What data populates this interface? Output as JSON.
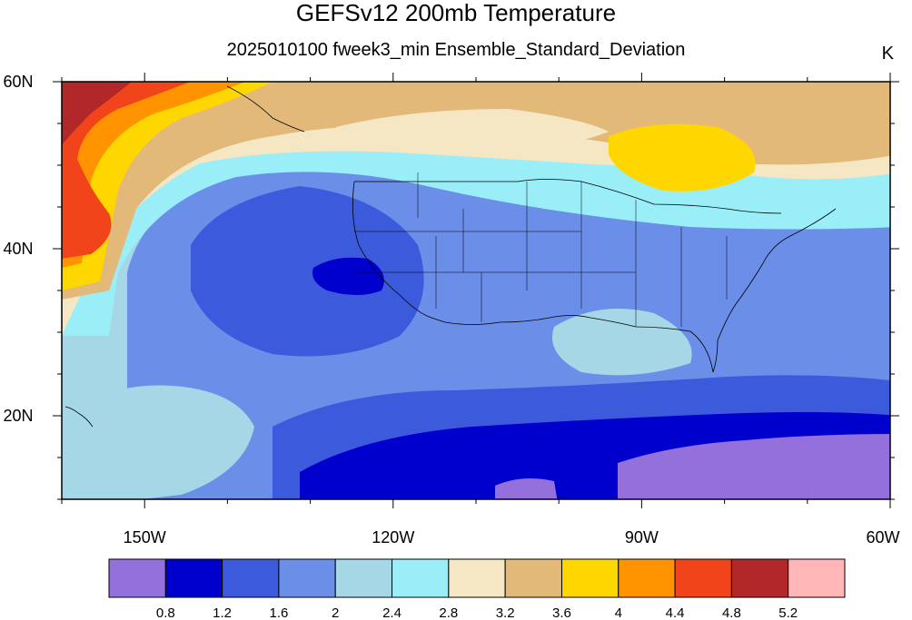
{
  "header": {
    "title": "GEFSv12 200mb Temperature",
    "subtitle": "2025010100 fweek3_min Ensemble_Standard_Deviation",
    "units": "K"
  },
  "map": {
    "lat_range": [
      10,
      60
    ],
    "lon_range": [
      -160,
      -60
    ],
    "lat_ticks": [
      {
        "value": 60,
        "label": "60N"
      },
      {
        "value": 40,
        "label": "40N"
      },
      {
        "value": 20,
        "label": "20N"
      }
    ],
    "lon_ticks": [
      {
        "value": -150,
        "label": "150W"
      },
      {
        "value": -120,
        "label": "120W"
      },
      {
        "value": -90,
        "label": "90W"
      },
      {
        "value": -60,
        "label": "60W"
      }
    ]
  },
  "colorbar": {
    "colors": [
      "#9370db",
      "#0000cd",
      "#3c5adc",
      "#6b8ee8",
      "#a6d7e6",
      "#99eef8",
      "#f5e6c4",
      "#e2b979",
      "#ffd700",
      "#ff9400",
      "#f2441a",
      "#b22828",
      "#ffb6b6"
    ],
    "labels": [
      "0.8",
      "1.2",
      "1.6",
      "2",
      "2.4",
      "2.8",
      "3.2",
      "3.6",
      "4",
      "4.4",
      "4.8",
      "5.2"
    ]
  }
}
